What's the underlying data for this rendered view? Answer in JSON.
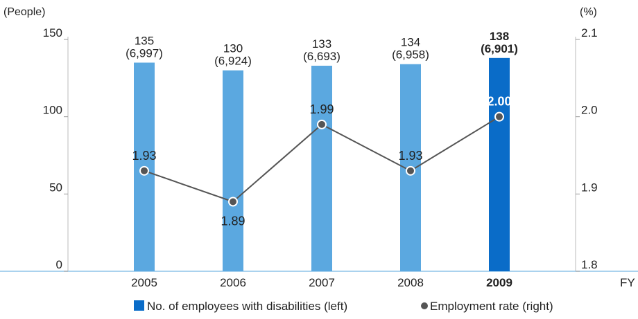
{
  "chart_data": {
    "type": "bar",
    "y_left_label": "(People)",
    "y_right_label": "(%)",
    "x_axis_label": "FY",
    "categories": [
      "2005",
      "2006",
      "2007",
      "2008",
      "2009"
    ],
    "highlight_category": "2009",
    "ylim_left": [
      0,
      150
    ],
    "yticks_left": [
      "0",
      "50",
      "100",
      "150"
    ],
    "ylim_right": [
      1.8,
      2.1
    ],
    "yticks_right": [
      "1.8",
      "1.9",
      "2.0",
      "2.1"
    ],
    "series": [
      {
        "name": "No. of employees with disabilities (left)",
        "kind": "bar",
        "axis": "left",
        "values": [
          135,
          130,
          133,
          134,
          138
        ],
        "sub_labels": [
          "(6,997)",
          "(6,924)",
          "(6,693)",
          "(6,958)",
          "(6,901)"
        ],
        "color": "#5ba8e0",
        "highlight_color": "#0a6cc8"
      },
      {
        "name": "Employment rate (right)",
        "kind": "line",
        "axis": "right",
        "values": [
          1.93,
          1.89,
          1.99,
          1.93,
          2.0
        ],
        "value_labels": [
          "1.93",
          "1.89",
          "1.99",
          "1.93",
          "2.00"
        ],
        "color": "#555555"
      }
    ],
    "grid": false,
    "legend_position": "bottom"
  }
}
